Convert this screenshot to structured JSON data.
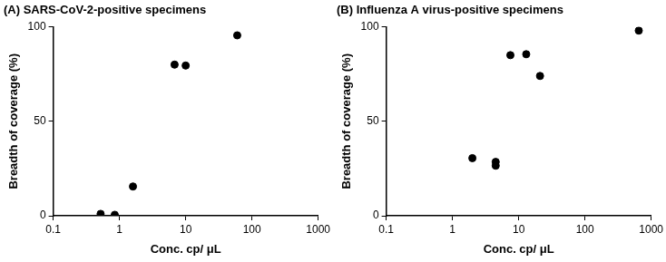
{
  "chart_data": [
    {
      "type": "scatter",
      "title": "(A) SARS-CoV-2-positive specimens",
      "xlabel": "Conc. cp/ μL",
      "ylabel": "Breadth of coverage (%)",
      "x": [
        0.52,
        0.85,
        1.6,
        6.8,
        10,
        60
      ],
      "values": [
        1,
        0.5,
        15.5,
        80,
        79.5,
        95.5
      ],
      "color": "#000000",
      "marker": "circle",
      "log": "x",
      "grid": false,
      "xlim": [
        0.1,
        1000
      ],
      "xticks": [
        0.1,
        1,
        10,
        100,
        1000
      ],
      "ylim": [
        0,
        100
      ],
      "yticks": [
        0,
        50,
        100
      ]
    },
    {
      "type": "scatter",
      "title": "(B) Influenza A virus-positive specimens",
      "xlabel": "Conc. cp/ μL",
      "ylabel": "Breadth of coverage (%)",
      "x": [
        2.0,
        4.5,
        4.5,
        7.5,
        13,
        21,
        650
      ],
      "values": [
        30.5,
        28.5,
        26.5,
        85,
        85.5,
        74,
        98
      ],
      "color": "#000000",
      "marker": "circle",
      "log": "x",
      "grid": false,
      "xlim": [
        0.1,
        1000
      ],
      "xticks": [
        0.1,
        1,
        10,
        100,
        1000
      ],
      "ylim": [
        0,
        100
      ],
      "yticks": [
        0,
        50,
        100
      ]
    }
  ]
}
